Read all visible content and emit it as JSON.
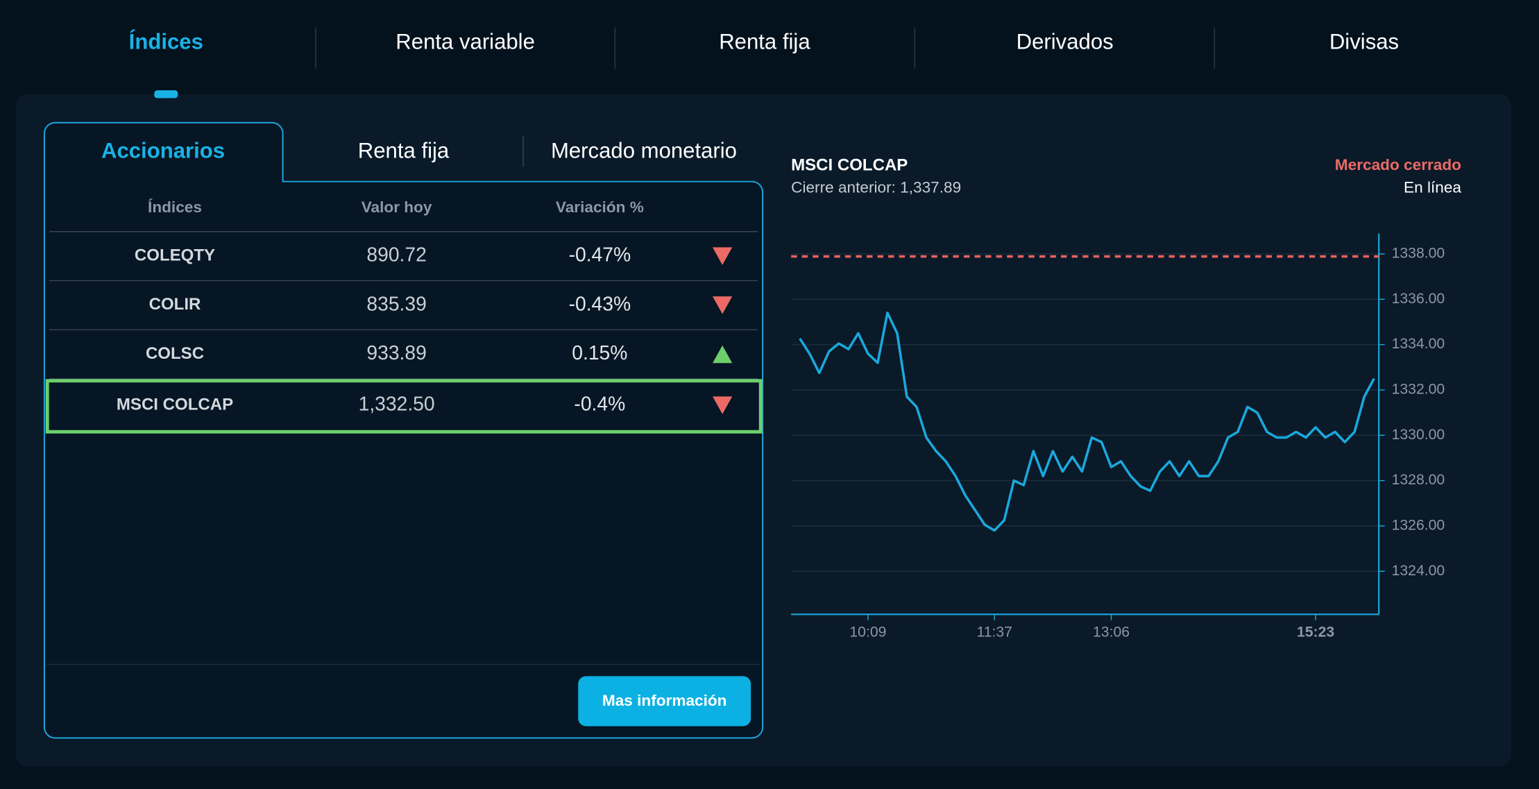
{
  "nav": {
    "items": [
      "Índices",
      "Renta variable",
      "Renta fija",
      "Derivados",
      "Divisas"
    ],
    "active": 0
  },
  "tabs": {
    "items": [
      "Accionarios",
      "Renta fija",
      "Mercado monetario"
    ],
    "active": 0
  },
  "table": {
    "headers": [
      "Índices",
      "Valor hoy",
      "Variación %"
    ],
    "rows": [
      {
        "name": "COLEQTY",
        "value": "890.72",
        "change": "-0.47%",
        "trend": "down",
        "selected": false
      },
      {
        "name": "COLIR",
        "value": "835.39",
        "change": "-0.43%",
        "trend": "down",
        "selected": false
      },
      {
        "name": "COLSC",
        "value": "933.89",
        "change": "0.15%",
        "trend": "up",
        "selected": false
      },
      {
        "name": "MSCI COLCAP",
        "value": "1,332.50",
        "change": "-0.4%",
        "trend": "down",
        "selected": true
      }
    ]
  },
  "button": "Mas información",
  "chart_data": {
    "type": "line",
    "title": "MSCI COLCAP",
    "subtitle": "Cierre anterior: 1,337.89",
    "status": "Mercado cerrado",
    "mode": "En línea",
    "color": "#1ba8dc",
    "reference_line": {
      "value": 1337.89,
      "color": "#e8615e"
    },
    "values": [
      1334.27,
      1333.6,
      1332.75,
      1333.7,
      1334.05,
      1333.8,
      1334.5,
      1333.6,
      1333.2,
      1335.4,
      1334.5,
      1331.7,
      1331.25,
      1329.9,
      1329.3,
      1328.85,
      1328.2,
      1327.35,
      1326.7,
      1326.05,
      1325.8,
      1326.25,
      1328.0,
      1327.8,
      1329.3,
      1328.2,
      1329.3,
      1328.4,
      1329.05,
      1328.4,
      1329.9,
      1329.7,
      1328.6,
      1328.85,
      1328.2,
      1327.75,
      1327.55,
      1328.4,
      1328.85,
      1328.2,
      1328.85,
      1328.2,
      1328.2,
      1328.85,
      1329.9,
      1330.15,
      1331.25,
      1331.0,
      1330.15,
      1329.9,
      1329.9,
      1330.15,
      1329.9,
      1330.35,
      1329.9,
      1330.15,
      1329.7,
      1330.15,
      1331.7,
      1332.5
    ],
    "xlim": [
      -0.9,
      59.5
    ],
    "xticks": [
      {
        "value": 7,
        "label": "10:09"
      },
      {
        "value": 20,
        "label": "11:37"
      },
      {
        "value": 32,
        "label": "13:06"
      },
      {
        "value": 53,
        "label": "15:23"
      }
    ],
    "ylim": [
      1322.1,
      1338.9
    ],
    "yticks": [
      {
        "value": 1324,
        "label": "1324.00"
      },
      {
        "value": 1326,
        "label": "1326.00"
      },
      {
        "value": 1328,
        "label": "1328.00"
      },
      {
        "value": 1330,
        "label": "1330.00"
      },
      {
        "value": 1332,
        "label": "1332.00"
      },
      {
        "value": 1334,
        "label": "1334.00"
      },
      {
        "value": 1336,
        "label": "1336.00"
      },
      {
        "value": 1338,
        "label": "1338.00"
      }
    ],
    "grid": true
  }
}
